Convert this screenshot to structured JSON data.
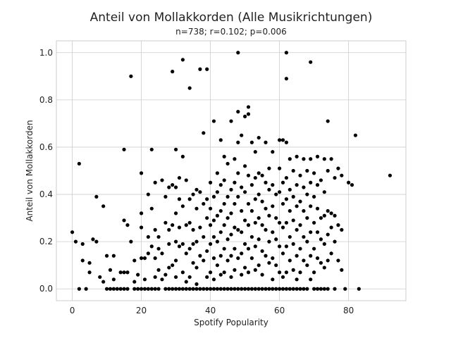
{
  "chart_data": {
    "type": "scatter",
    "title": "Anteil von Mollakkorden (Alle Musikrichtungen)",
    "subtitle": "n=738; r=0.102; p=0.006",
    "xlabel": "Spotify Popularity",
    "ylabel": "Anteil von Mollakkorden",
    "xlim": [
      -4.6,
      96.6
    ],
    "ylim": [
      -0.05,
      1.05
    ],
    "xticks": [
      0,
      20,
      40,
      60,
      80
    ],
    "yticks": [
      0.0,
      0.2,
      0.4,
      0.6,
      0.8,
      1.0
    ],
    "xtick_labels": [
      "0",
      "20",
      "40",
      "60",
      "80"
    ],
    "ytick_labels": [
      "0.0",
      "0.2",
      "0.4",
      "0.6",
      "0.8",
      "1.0"
    ],
    "grid": true,
    "marker_color": "#000000",
    "points": [
      [
        0,
        0.24
      ],
      [
        1,
        0.2
      ],
      [
        2,
        0.53
      ],
      [
        2,
        0.0
      ],
      [
        3,
        0.19
      ],
      [
        3,
        0.12
      ],
      [
        4,
        0.0
      ],
      [
        5,
        0.11
      ],
      [
        5,
        0.07
      ],
      [
        6,
        0.21
      ],
      [
        7,
        0.39
      ],
      [
        7,
        0.2
      ],
      [
        8,
        0.05
      ],
      [
        9,
        0.35
      ],
      [
        9,
        0.03
      ],
      [
        10,
        0.14
      ],
      [
        10,
        0.0
      ],
      [
        11,
        0.08
      ],
      [
        11,
        0.0
      ],
      [
        12,
        0.14
      ],
      [
        12,
        0.0
      ],
      [
        12,
        0.04
      ],
      [
        13,
        0.0
      ],
      [
        14,
        0.07
      ],
      [
        14,
        0.0
      ],
      [
        15,
        0.59
      ],
      [
        15,
        0.29
      ],
      [
        15,
        0.07
      ],
      [
        15,
        0.0
      ],
      [
        16,
        0.27
      ],
      [
        16,
        0.07
      ],
      [
        16,
        0.0
      ],
      [
        17,
        0.9
      ],
      [
        17,
        0.2
      ],
      [
        18,
        0.12
      ],
      [
        18,
        0.03
      ],
      [
        18,
        0.0
      ],
      [
        19,
        0.06
      ],
      [
        19,
        0.0
      ],
      [
        20,
        0.49
      ],
      [
        20,
        0.32
      ],
      [
        20,
        0.26
      ],
      [
        20,
        0.13
      ],
      [
        20,
        0.0
      ],
      [
        21,
        0.13
      ],
      [
        21,
        0.04
      ],
      [
        21,
        0.0
      ],
      [
        22,
        0.4
      ],
      [
        22,
        0.22
      ],
      [
        22,
        0.15
      ],
      [
        22,
        0.0
      ],
      [
        23,
        0.59
      ],
      [
        23,
        0.34
      ],
      [
        23,
        0.18
      ],
      [
        23,
        0.0
      ],
      [
        24,
        0.45
      ],
      [
        24,
        0.25
      ],
      [
        24,
        0.13
      ],
      [
        24,
        0.05
      ],
      [
        24,
        0.0
      ],
      [
        25,
        0.22
      ],
      [
        25,
        0.17
      ],
      [
        25,
        0.08
      ],
      [
        25,
        0.0
      ],
      [
        26,
        0.46
      ],
      [
        26,
        0.15
      ],
      [
        26,
        0.04
      ],
      [
        27,
        0.39
      ],
      [
        27,
        0.28
      ],
      [
        27,
        0.06
      ],
      [
        27,
        0.0
      ],
      [
        28,
        0.43
      ],
      [
        28,
        0.25
      ],
      [
        28,
        0.19
      ],
      [
        28,
        0.09
      ],
      [
        28,
        0.0
      ],
      [
        29,
        0.92
      ],
      [
        29,
        0.44
      ],
      [
        29,
        0.27
      ],
      [
        29,
        0.1
      ],
      [
        29,
        0.0
      ],
      [
        30,
        0.59
      ],
      [
        30,
        0.43
      ],
      [
        30,
        0.32
      ],
      [
        30,
        0.2
      ],
      [
        30,
        0.12
      ],
      [
        30,
        0.05
      ],
      [
        30,
        0.0
      ],
      [
        31,
        0.47
      ],
      [
        31,
        0.38
      ],
      [
        31,
        0.26
      ],
      [
        31,
        0.18
      ],
      [
        31,
        0.0
      ],
      [
        32,
        0.97
      ],
      [
        32,
        0.56
      ],
      [
        32,
        0.35
      ],
      [
        32,
        0.19
      ],
      [
        32,
        0.07
      ],
      [
        32,
        0.0
      ],
      [
        33,
        0.46
      ],
      [
        33,
        0.27
      ],
      [
        33,
        0.15
      ],
      [
        33,
        0.03
      ],
      [
        33,
        0.0
      ],
      [
        34,
        0.85
      ],
      [
        34,
        0.38
      ],
      [
        34,
        0.28
      ],
      [
        34,
        0.17
      ],
      [
        34,
        0.05
      ],
      [
        34,
        0.0
      ],
      [
        35,
        0.4
      ],
      [
        35,
        0.25
      ],
      [
        35,
        0.19
      ],
      [
        35,
        0.11
      ],
      [
        35,
        0.0
      ],
      [
        36,
        0.42
      ],
      [
        36,
        0.34
      ],
      [
        36,
        0.2
      ],
      [
        36,
        0.09
      ],
      [
        36,
        0.02
      ],
      [
        36,
        0.0
      ],
      [
        37,
        0.93
      ],
      [
        37,
        0.41
      ],
      [
        37,
        0.26
      ],
      [
        37,
        0.14
      ],
      [
        37,
        0.0
      ],
      [
        38,
        0.66
      ],
      [
        38,
        0.36
      ],
      [
        38,
        0.22
      ],
      [
        38,
        0.12
      ],
      [
        38,
        0.0
      ],
      [
        39,
        0.93
      ],
      [
        39,
        0.38
      ],
      [
        39,
        0.3
      ],
      [
        39,
        0.16
      ],
      [
        39,
        0.05
      ],
      [
        39,
        0.0
      ],
      [
        40,
        0.45
      ],
      [
        40,
        0.34
      ],
      [
        40,
        0.27
      ],
      [
        40,
        0.19
      ],
      [
        40,
        0.07
      ],
      [
        40,
        0.0
      ],
      [
        41,
        0.71
      ],
      [
        41,
        0.39
      ],
      [
        41,
        0.29
      ],
      [
        41,
        0.22
      ],
      [
        41,
        0.13
      ],
      [
        41,
        0.04
      ],
      [
        41,
        0.0
      ],
      [
        42,
        0.49
      ],
      [
        42,
        0.41
      ],
      [
        42,
        0.31
      ],
      [
        42,
        0.2
      ],
      [
        42,
        0.1
      ],
      [
        42,
        0.0
      ],
      [
        43,
        0.63
      ],
      [
        43,
        0.44
      ],
      [
        43,
        0.33
      ],
      [
        43,
        0.24
      ],
      [
        43,
        0.14
      ],
      [
        43,
        0.06
      ],
      [
        43,
        0.0
      ],
      [
        44,
        0.56
      ],
      [
        44,
        0.46
      ],
      [
        44,
        0.36
      ],
      [
        44,
        0.27
      ],
      [
        44,
        0.17
      ],
      [
        44,
        0.07
      ],
      [
        44,
        0.0
      ],
      [
        45,
        0.53
      ],
      [
        45,
        0.39
      ],
      [
        45,
        0.3
      ],
      [
        45,
        0.21
      ],
      [
        45,
        0.12
      ],
      [
        45,
        0.0
      ],
      [
        46,
        0.71
      ],
      [
        46,
        0.42
      ],
      [
        46,
        0.32
      ],
      [
        46,
        0.23
      ],
      [
        46,
        0.14
      ],
      [
        46,
        0.05
      ],
      [
        46,
        0.0
      ],
      [
        47,
        0.55
      ],
      [
        47,
        0.45
      ],
      [
        47,
        0.36
      ],
      [
        47,
        0.26
      ],
      [
        47,
        0.17
      ],
      [
        47,
        0.08
      ],
      [
        47,
        0.0
      ],
      [
        48,
        1.0
      ],
      [
        48,
        0.75
      ],
      [
        48,
        0.62
      ],
      [
        48,
        0.49
      ],
      [
        48,
        0.39
      ],
      [
        48,
        0.25
      ],
      [
        48,
        0.13
      ],
      [
        48,
        0.0
      ],
      [
        49,
        0.65
      ],
      [
        49,
        0.43
      ],
      [
        49,
        0.33
      ],
      [
        49,
        0.24
      ],
      [
        49,
        0.15
      ],
      [
        49,
        0.06
      ],
      [
        49,
        0.0
      ],
      [
        50,
        0.73
      ],
      [
        50,
        0.52
      ],
      [
        50,
        0.41
      ],
      [
        50,
        0.29
      ],
      [
        50,
        0.19
      ],
      [
        50,
        0.09
      ],
      [
        50,
        0.0
      ],
      [
        51,
        0.77
      ],
      [
        51,
        0.74
      ],
      [
        51,
        0.48
      ],
      [
        51,
        0.36
      ],
      [
        51,
        0.27
      ],
      [
        51,
        0.17
      ],
      [
        51,
        0.07
      ],
      [
        51,
        0.0
      ],
      [
        52,
        0.62
      ],
      [
        52,
        0.44
      ],
      [
        52,
        0.33
      ],
      [
        52,
        0.22
      ],
      [
        52,
        0.13
      ],
      [
        52,
        0.0
      ],
      [
        53,
        0.58
      ],
      [
        53,
        0.47
      ],
      [
        53,
        0.38
      ],
      [
        53,
        0.28
      ],
      [
        53,
        0.18
      ],
      [
        53,
        0.08
      ],
      [
        53,
        0.0
      ],
      [
        54,
        0.64
      ],
      [
        54,
        0.49
      ],
      [
        54,
        0.4
      ],
      [
        54,
        0.3
      ],
      [
        54,
        0.21
      ],
      [
        54,
        0.1
      ],
      [
        54,
        0.0
      ],
      [
        55,
        0.48
      ],
      [
        55,
        0.37
      ],
      [
        55,
        0.27
      ],
      [
        55,
        0.16
      ],
      [
        55,
        0.06
      ],
      [
        55,
        0.0
      ],
      [
        56,
        0.62
      ],
      [
        56,
        0.45
      ],
      [
        56,
        0.34
      ],
      [
        56,
        0.25
      ],
      [
        56,
        0.14
      ],
      [
        56,
        0.0
      ],
      [
        57,
        0.51
      ],
      [
        57,
        0.42
      ],
      [
        57,
        0.31
      ],
      [
        57,
        0.2
      ],
      [
        57,
        0.11
      ],
      [
        57,
        0.0
      ],
      [
        58,
        0.58
      ],
      [
        58,
        0.44
      ],
      [
        58,
        0.35
      ],
      [
        58,
        0.24
      ],
      [
        58,
        0.13
      ],
      [
        58,
        0.04
      ],
      [
        58,
        0.0
      ],
      [
        59,
        0.4
      ],
      [
        59,
        0.3
      ],
      [
        59,
        0.21
      ],
      [
        59,
        0.1
      ],
      [
        59,
        0.0
      ],
      [
        60,
        0.63
      ],
      [
        60,
        0.51
      ],
      [
        60,
        0.41
      ],
      [
        60,
        0.28
      ],
      [
        60,
        0.18
      ],
      [
        60,
        0.07
      ],
      [
        60,
        0.0
      ],
      [
        61,
        0.63
      ],
      [
        61,
        0.45
      ],
      [
        61,
        0.36
      ],
      [
        61,
        0.26
      ],
      [
        61,
        0.15
      ],
      [
        61,
        0.05
      ],
      [
        61,
        0.0
      ],
      [
        62,
        1.0
      ],
      [
        62,
        0.89
      ],
      [
        62,
        0.62
      ],
      [
        62,
        0.47
      ],
      [
        62,
        0.38
      ],
      [
        62,
        0.28
      ],
      [
        62,
        0.18
      ],
      [
        62,
        0.07
      ],
      [
        62,
        0.0
      ],
      [
        63,
        0.55
      ],
      [
        63,
        0.42
      ],
      [
        63,
        0.33
      ],
      [
        63,
        0.22
      ],
      [
        63,
        0.12
      ],
      [
        63,
        0.0
      ],
      [
        64,
        0.5
      ],
      [
        64,
        0.39
      ],
      [
        64,
        0.29
      ],
      [
        64,
        0.19
      ],
      [
        64,
        0.08
      ],
      [
        64,
        0.0
      ],
      [
        65,
        0.56
      ],
      [
        65,
        0.44
      ],
      [
        65,
        0.35
      ],
      [
        65,
        0.25
      ],
      [
        65,
        0.14
      ],
      [
        65,
        0.04
      ],
      [
        65,
        0.0
      ],
      [
        66,
        0.48
      ],
      [
        66,
        0.37
      ],
      [
        66,
        0.27
      ],
      [
        66,
        0.17
      ],
      [
        66,
        0.07
      ],
      [
        66,
        0.0
      ],
      [
        67,
        0.55
      ],
      [
        67,
        0.43
      ],
      [
        67,
        0.33
      ],
      [
        67,
        0.22
      ],
      [
        67,
        0.12
      ],
      [
        67,
        0.0
      ],
      [
        68,
        0.5
      ],
      [
        68,
        0.4
      ],
      [
        68,
        0.3
      ],
      [
        68,
        0.2
      ],
      [
        68,
        0.1
      ],
      [
        68,
        0.0
      ],
      [
        69,
        0.96
      ],
      [
        69,
        0.55
      ],
      [
        69,
        0.45
      ],
      [
        69,
        0.35
      ],
      [
        69,
        0.24
      ],
      [
        69,
        0.14
      ],
      [
        69,
        0.04
      ],
      [
        70,
        0.49
      ],
      [
        70,
        0.39
      ],
      [
        70,
        0.28
      ],
      [
        70,
        0.17
      ],
      [
        70,
        0.07
      ],
      [
        70,
        0.0
      ],
      [
        71,
        0.56
      ],
      [
        71,
        0.44
      ],
      [
        71,
        0.34
      ],
      [
        71,
        0.24
      ],
      [
        71,
        0.13
      ],
      [
        71,
        0.0
      ],
      [
        72,
        0.46
      ],
      [
        72,
        0.3
      ],
      [
        72,
        0.21
      ],
      [
        72,
        0.11
      ],
      [
        72,
        0.0
      ],
      [
        73,
        0.55
      ],
      [
        73,
        0.41
      ],
      [
        73,
        0.31
      ],
      [
        73,
        0.19
      ],
      [
        73,
        0.09
      ],
      [
        73,
        0.0
      ],
      [
        74,
        0.71
      ],
      [
        74,
        0.5
      ],
      [
        74,
        0.33
      ],
      [
        74,
        0.23
      ],
      [
        74,
        0.12
      ],
      [
        74,
        0.0
      ],
      [
        75,
        0.55
      ],
      [
        75,
        0.32
      ],
      [
        75,
        0.26
      ],
      [
        75,
        0.15
      ],
      [
        76,
        0.47
      ],
      [
        76,
        0.31
      ],
      [
        76,
        0.2
      ],
      [
        76,
        0.0
      ],
      [
        77,
        0.51
      ],
      [
        77,
        0.27
      ],
      [
        77,
        0.12
      ],
      [
        78,
        0.48
      ],
      [
        78,
        0.25
      ],
      [
        78,
        0.08
      ],
      [
        79,
        0.0
      ],
      [
        80,
        0.45
      ],
      [
        81,
        0.44
      ],
      [
        82,
        0.65
      ],
      [
        83,
        0.0
      ],
      [
        92,
        0.48
      ]
    ]
  }
}
